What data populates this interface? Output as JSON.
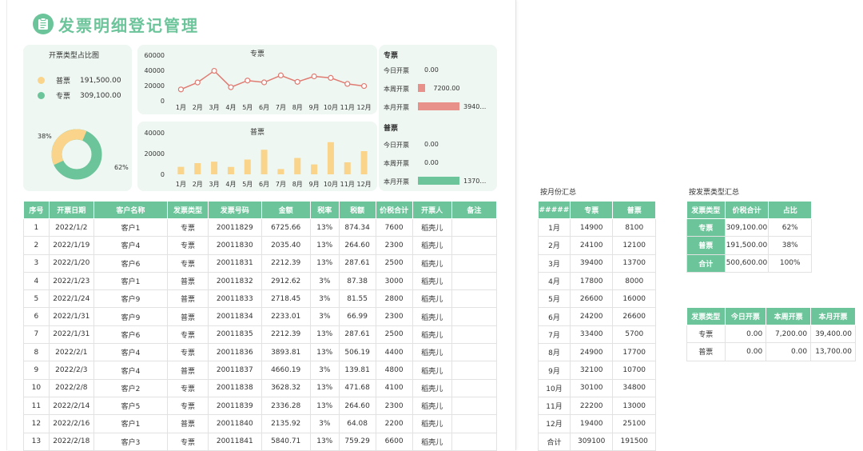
{
  "title": "发票明细登记管理",
  "pie": {
    "title": "开票类型占比图",
    "items": [
      {
        "name": "普票",
        "value": "191,500.00",
        "color": "#f9d48a"
      },
      {
        "name": "专票",
        "value": "309,100.00",
        "color": "#6cc49a"
      }
    ],
    "pct_small": "38%",
    "pct_large": "62%"
  },
  "chart_data": [
    {
      "type": "line",
      "title": "专票",
      "categories": [
        "1月",
        "2月",
        "3月",
        "4月",
        "5月",
        "6月",
        "7月",
        "8月",
        "9月",
        "10月",
        "11月",
        "12月"
      ],
      "values": [
        14900,
        24100,
        39400,
        17800,
        26600,
        24200,
        33400,
        24900,
        32100,
        30100,
        22200,
        19400
      ],
      "yticks": [
        "60000",
        "40000",
        "20000",
        "0"
      ],
      "ylim": [
        0,
        60000
      ],
      "color": "#e07b72"
    },
    {
      "type": "bar",
      "title": "普票",
      "categories": [
        "1月",
        "2月",
        "3月",
        "4月",
        "5月",
        "6月",
        "7月",
        "8月",
        "9月",
        "10月",
        "11月",
        "12月"
      ],
      "values": [
        8100,
        12100,
        13700,
        8000,
        16000,
        26600,
        5700,
        17700,
        10700,
        34800,
        13000,
        25100
      ],
      "yticks": [
        "40000",
        "20000",
        "0"
      ],
      "ylim": [
        0,
        45000
      ],
      "color": "#f9d48a"
    }
  ],
  "side": {
    "zhuan": {
      "title": "专票",
      "rows": [
        {
          "label": "今日开票",
          "value": "0.00",
          "frac": 0
        },
        {
          "label": "本周开票",
          "value": "7200.00",
          "frac": 0.18
        },
        {
          "label": "本月开票",
          "value": "3940…",
          "frac": 1
        }
      ]
    },
    "pu": {
      "title": "普票",
      "rows": [
        {
          "label": "今日开票",
          "value": "0.00",
          "frac": 0
        },
        {
          "label": "本周开票",
          "value": "0.00",
          "frac": 0
        },
        {
          "label": "本月开票",
          "value": "1370…",
          "frac": 1
        }
      ]
    }
  },
  "main_table": {
    "headers": [
      "序号",
      "开票日期",
      "客户名称",
      "发票类型",
      "发票号码",
      "金额",
      "税率",
      "税额",
      "价税合计",
      "开票人",
      "备注"
    ],
    "rows": [
      [
        "1",
        "2022/1/2",
        "客户1",
        "专票",
        "20011829",
        "6725.66",
        "13%",
        "874.34",
        "7600",
        "稻壳儿",
        ""
      ],
      [
        "2",
        "2022/1/19",
        "客户4",
        "专票",
        "20011830",
        "2035.40",
        "13%",
        "264.60",
        "2300",
        "稻壳儿",
        ""
      ],
      [
        "3",
        "2022/1/20",
        "客户6",
        "专票",
        "20011831",
        "2212.39",
        "13%",
        "287.61",
        "2500",
        "稻壳儿",
        ""
      ],
      [
        "4",
        "2022/1/23",
        "客户1",
        "普票",
        "20011832",
        "2912.62",
        "3%",
        "87.38",
        "3000",
        "稻壳儿",
        ""
      ],
      [
        "5",
        "2022/1/24",
        "客户9",
        "普票",
        "20011833",
        "2718.45",
        "3%",
        "81.55",
        "2800",
        "稻壳儿",
        ""
      ],
      [
        "6",
        "2022/1/31",
        "客户9",
        "普票",
        "20011834",
        "2233.01",
        "3%",
        "66.99",
        "2300",
        "稻壳儿",
        ""
      ],
      [
        "7",
        "2022/1/31",
        "客户6",
        "专票",
        "20011835",
        "2212.39",
        "13%",
        "287.61",
        "2500",
        "稻壳儿",
        ""
      ],
      [
        "8",
        "2022/2/1",
        "客户4",
        "专票",
        "20011836",
        "3893.81",
        "13%",
        "506.19",
        "4400",
        "稻壳儿",
        ""
      ],
      [
        "9",
        "2022/2/3",
        "客户4",
        "普票",
        "20011837",
        "4660.19",
        "3%",
        "139.81",
        "4800",
        "稻壳儿",
        ""
      ],
      [
        "10",
        "2022/2/8",
        "客户2",
        "专票",
        "20011838",
        "3628.32",
        "13%",
        "471.68",
        "4100",
        "稻壳儿",
        ""
      ],
      [
        "11",
        "2022/2/14",
        "客户5",
        "专票",
        "20011839",
        "2336.28",
        "13%",
        "264.60",
        "2300",
        "稻壳儿",
        ""
      ],
      [
        "12",
        "2022/2/16",
        "客户1",
        "普票",
        "20011840",
        "2135.92",
        "3%",
        "64.08",
        "2200",
        "稻壳儿",
        ""
      ],
      [
        "13",
        "2022/2/18",
        "客户3",
        "专票",
        "20011841",
        "5840.71",
        "13%",
        "759.29",
        "6600",
        "稻壳儿",
        ""
      ]
    ]
  },
  "monthly": {
    "label": "按月份汇总",
    "headers": [
      "#####",
      "专票",
      "普票"
    ],
    "rows": [
      [
        "1月",
        "14900",
        "8100"
      ],
      [
        "2月",
        "24100",
        "12100"
      ],
      [
        "3月",
        "39400",
        "13700"
      ],
      [
        "4月",
        "17800",
        "8000"
      ],
      [
        "5月",
        "26600",
        "16000"
      ],
      [
        "6月",
        "24200",
        "26600"
      ],
      [
        "7月",
        "33400",
        "5700"
      ],
      [
        "8月",
        "24900",
        "17700"
      ],
      [
        "9月",
        "32100",
        "10700"
      ],
      [
        "10月",
        "30100",
        "34800"
      ],
      [
        "11月",
        "22200",
        "13000"
      ],
      [
        "12月",
        "19400",
        "25100"
      ],
      [
        "合计",
        "309100",
        "191500"
      ]
    ]
  },
  "type_summary": {
    "label": "按发票类型汇总",
    "headers": [
      "发票类型",
      "价税合计",
      "占比"
    ],
    "rows": [
      [
        "专票",
        "309,100.00",
        "62%"
      ],
      [
        "普票",
        "191,500.00",
        "38%"
      ],
      [
        "合计",
        "500,600.00",
        "100%"
      ]
    ]
  },
  "period_summary": {
    "headers": [
      "发票类型",
      "今日开票",
      "本周开票",
      "本月开票"
    ],
    "rows": [
      [
        "专票",
        "0.00",
        "7,200.00",
        "39,400.00"
      ],
      [
        "普票",
        "0.00",
        "0.00",
        "13,700.00"
      ]
    ]
  }
}
